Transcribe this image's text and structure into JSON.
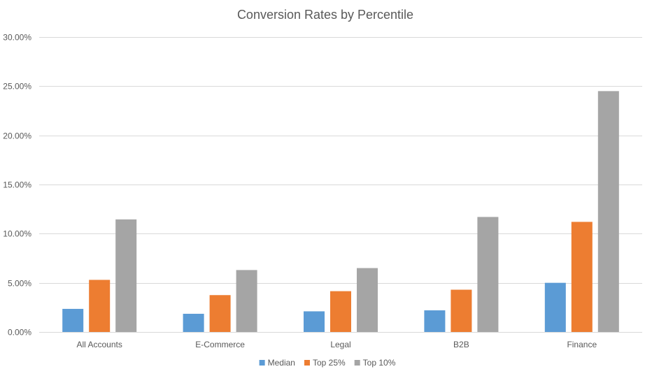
{
  "chart_data": {
    "type": "bar",
    "title": "Conversion Rates by Percentile",
    "xlabel": "",
    "ylabel": "",
    "categories": [
      "All Accounts",
      "E-Commerce",
      "Legal",
      "B2B",
      "Finance"
    ],
    "series": [
      {
        "name": "Median",
        "color": "#5b9bd5",
        "values": [
          0.0235,
          0.0185,
          0.021,
          0.022,
          0.05
        ]
      },
      {
        "name": "Top 25%",
        "color": "#ed7d31",
        "values": [
          0.053,
          0.0375,
          0.0415,
          0.043,
          0.112
        ]
      },
      {
        "name": "Top 10%",
        "color": "#a5a5a5",
        "values": [
          0.1145,
          0.063,
          0.065,
          0.117,
          0.245
        ]
      }
    ],
    "ylim": [
      0,
      0.3
    ],
    "yticks": [
      "0.00%",
      "5.00%",
      "10.00%",
      "15.00%",
      "20.00%",
      "25.00%",
      "30.00%"
    ],
    "grid": true,
    "legend_position": "bottom"
  }
}
